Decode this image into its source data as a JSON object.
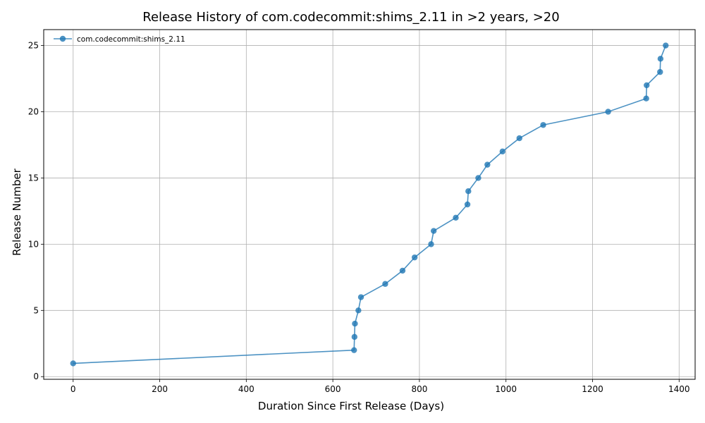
{
  "chart_data": {
    "type": "line",
    "title": "Release History of com.codecommit:shims_2.11 in >2 years, >20",
    "xlabel": "Duration Since First Release (Days)",
    "ylabel": "Release Number",
    "xlim": [
      -68,
      1437
    ],
    "ylim": [
      -0.2,
      26.2
    ],
    "xticks": [
      0,
      200,
      400,
      600,
      800,
      1000,
      1200,
      1400
    ],
    "yticks": [
      0,
      5,
      10,
      15,
      20,
      25
    ],
    "grid": true,
    "legend_position": "top-left",
    "line_color": "#1f77b4",
    "series": [
      {
        "name": "com.codecommit:shims_2.11",
        "x": [
          0,
          649,
          650,
          651,
          659,
          665,
          721,
          761,
          789,
          827,
          833,
          884,
          911,
          913,
          936,
          957,
          992,
          1031,
          1086,
          1236,
          1324,
          1325,
          1356,
          1357,
          1369
        ],
        "y": [
          1,
          2,
          3,
          4,
          5,
          6,
          7,
          8,
          9,
          10,
          11,
          12,
          13,
          14,
          15,
          16,
          17,
          18,
          19,
          20,
          21,
          22,
          23,
          24,
          25
        ]
      }
    ]
  }
}
